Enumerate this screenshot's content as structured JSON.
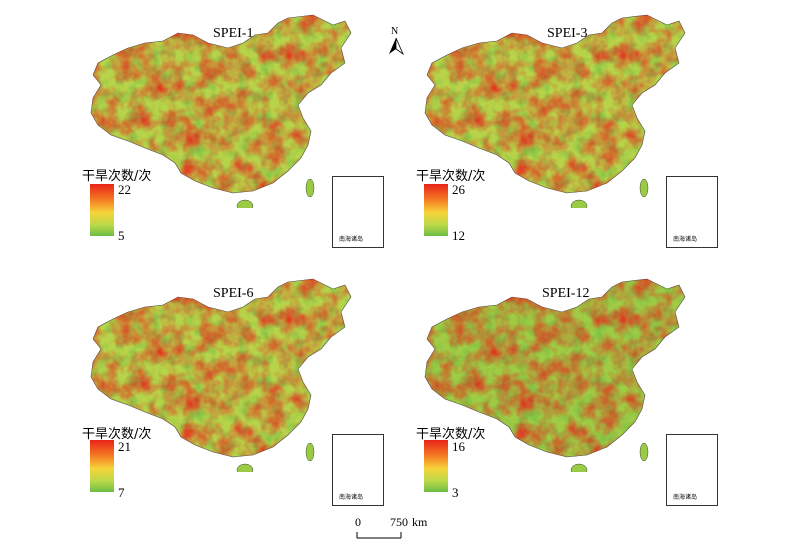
{
  "legend_title": "干旱次数/次",
  "inset_label": "南海诸岛",
  "north_label": "N",
  "scale": {
    "start": "0",
    "end": "750",
    "unit": "km"
  },
  "colors": {
    "high": "#e8231a",
    "mid": "#f6d43a",
    "low": "#6cbd45"
  },
  "panels": [
    {
      "title": "SPEI-1",
      "max": "22",
      "min": "5"
    },
    {
      "title": "SPEI-3",
      "max": "26",
      "min": "12"
    },
    {
      "title": "SPEI-6",
      "max": "21",
      "min": "7"
    },
    {
      "title": "SPEI-12",
      "max": "16",
      "min": "3"
    }
  ]
}
